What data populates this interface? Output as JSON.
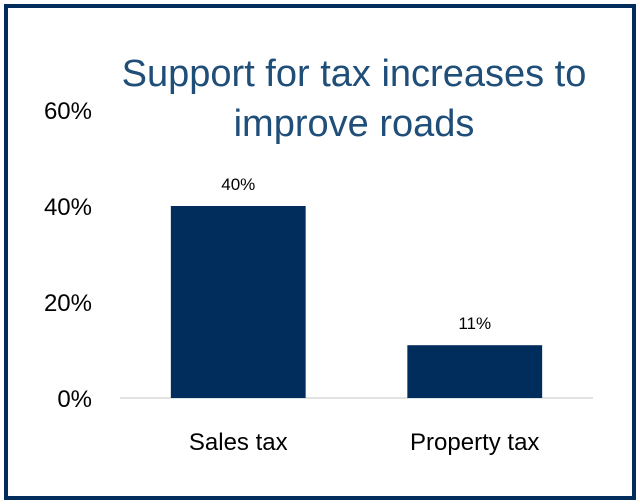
{
  "chart_data": {
    "type": "bar",
    "title": "Support for tax increases to improve roads",
    "title_lines": [
      "Support for tax increases to",
      "improve roads"
    ],
    "categories": [
      "Sales tax",
      "Property tax"
    ],
    "values": [
      40,
      11
    ],
    "value_labels": [
      "40%",
      "11%"
    ],
    "yticks": [
      0,
      20,
      40,
      60
    ],
    "ytick_labels": [
      "0%",
      "20%",
      "40%",
      "60%"
    ],
    "ylim": [
      0,
      60
    ],
    "xlabel": "",
    "ylabel": "",
    "grid": false,
    "legend": "none",
    "bar_color": "#002d5b",
    "title_color": "#1f4e79",
    "border_color": "#002d5b"
  }
}
